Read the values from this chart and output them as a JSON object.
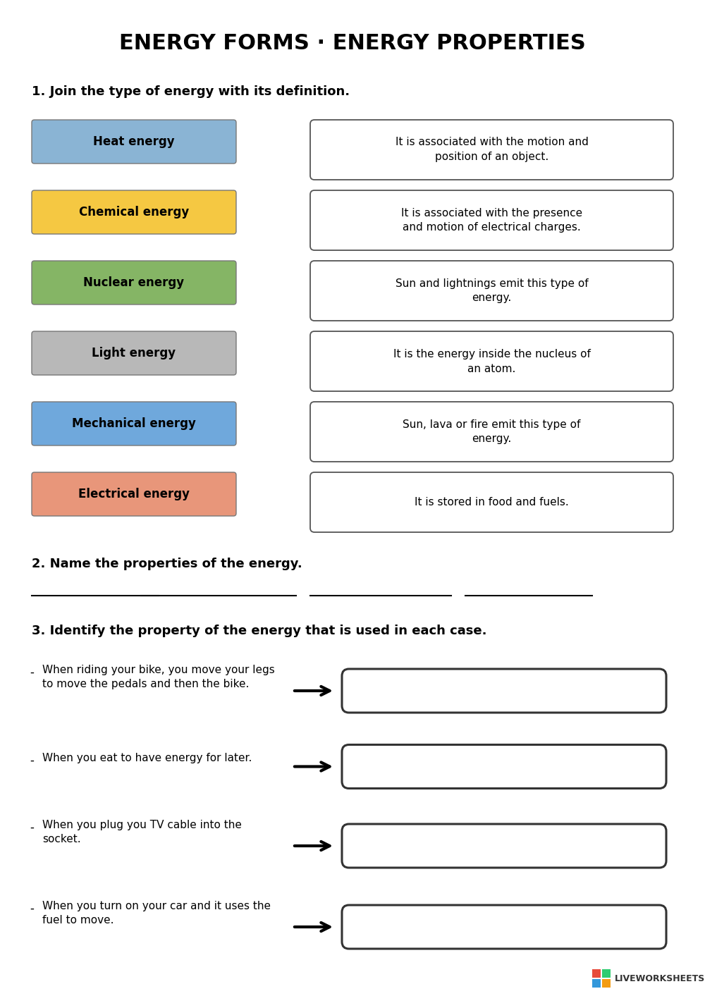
{
  "title": "ENERGY FORMS · ENERGY PROPERTIES",
  "bg_color": "#ffffff",
  "title_fontsize": 20,
  "section1_heading": "1. Join the type of energy with its definition.",
  "section2_heading": "2. Name the properties of the energy.",
  "section3_heading": "3. Identify the property of the energy that is used in each case.",
  "left_boxes": [
    {
      "label": "Heat energy",
      "color": "#8ab4d4"
    },
    {
      "label": "Chemical energy",
      "color": "#f5c842"
    },
    {
      "label": "Nuclear energy",
      "color": "#85b565"
    },
    {
      "label": "Light energy",
      "color": "#b8b8b8"
    },
    {
      "label": "Mechanical energy",
      "color": "#6fa8dc"
    },
    {
      "label": "Electrical energy",
      "color": "#e8967a"
    }
  ],
  "right_boxes": [
    "It is associated with the motion and\nposition of an object.",
    "It is associated with the presence\nand motion of electrical charges.",
    "Sun and lightnings emit this type of\nenergy.",
    "It is the energy inside the nucleus of\nan atom.",
    "Sun, lava or fire emit this type of\nenergy.",
    "It is stored in food and fuels."
  ],
  "section3_items": [
    "When riding your bike, you move your legs\nto move the pedals and then the bike.",
    "When you eat to have energy for later.",
    "When you plug you TV cable into the\nsocket.",
    "When you turn on your car and it uses the\nfuel to move."
  ]
}
